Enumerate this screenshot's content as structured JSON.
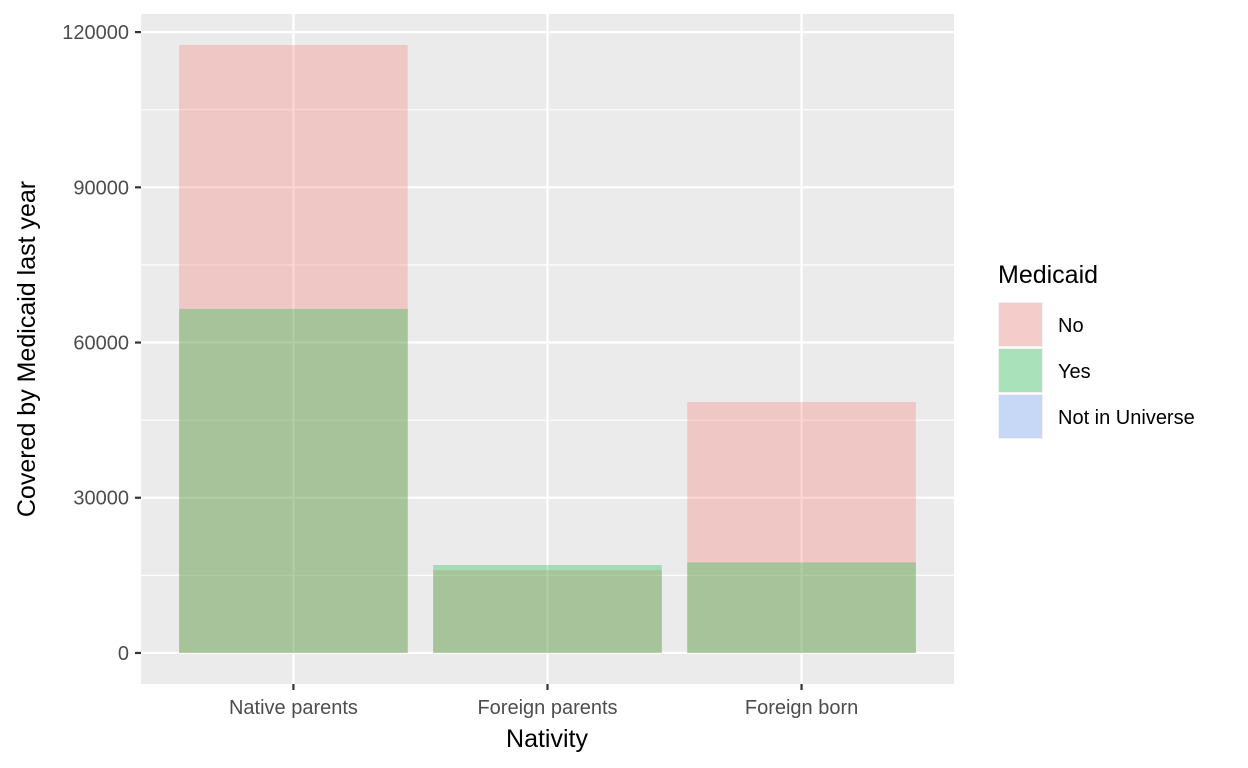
{
  "chart_data": {
    "type": "bar",
    "overlap": "identity",
    "xlabel": "Nativity",
    "ylabel": "Covered by Medicaid last year",
    "categories": [
      "Native parents",
      "Foreign parents",
      "Foreign born"
    ],
    "ylim": [
      -6000,
      123500
    ],
    "yticks": [
      0,
      30000,
      60000,
      90000,
      120000
    ],
    "grid": true,
    "legend": {
      "title": "Medicaid",
      "position": "right"
    },
    "series": [
      {
        "name": "No",
        "color": "#F8766D",
        "values": [
          117500,
          16000,
          48500
        ]
      },
      {
        "name": "Yes",
        "color": "#00BA38",
        "values": [
          66500,
          17000,
          17500
        ]
      },
      {
        "name": "Not in Universe",
        "color": "#619CFF",
        "values": [
          0,
          0,
          0
        ]
      }
    ],
    "alpha": 0.3
  }
}
